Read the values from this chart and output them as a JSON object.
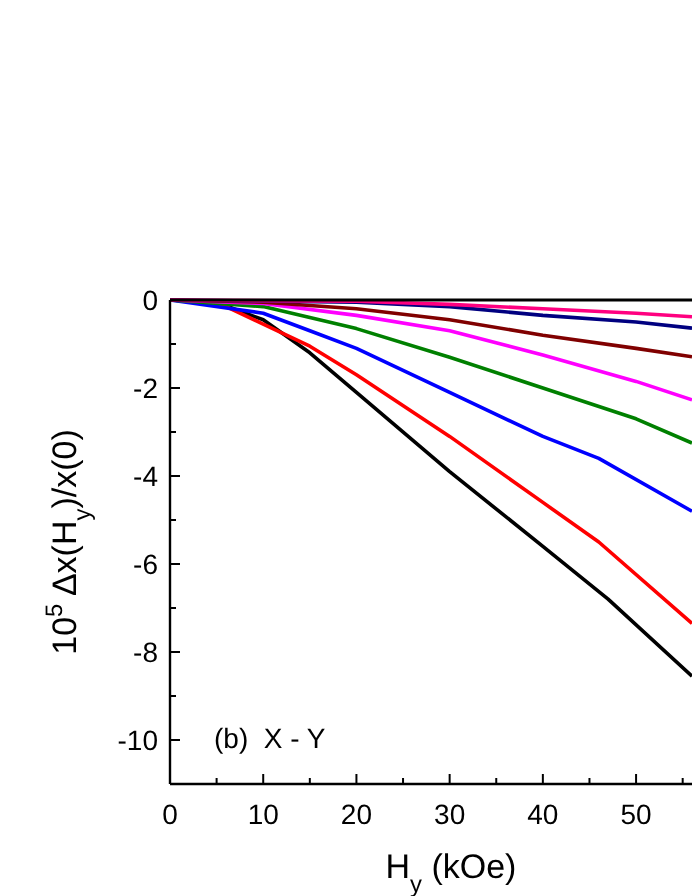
{
  "chart_data": {
    "type": "line",
    "xlabel": "H$_{y}$ (kOe)",
    "ylabel": "10$^{5}$ Δx(H$_{y}$)/x(0)",
    "xlim": [
      0,
      56
    ],
    "ylim": [
      -11,
      0
    ],
    "xticks": [
      0,
      {
        "value": 5,
        "label": null
      },
      10,
      {
        "value": 15,
        "label": null
      },
      20,
      {
        "value": 25,
        "label": null
      },
      30,
      {
        "value": 35,
        "label": null
      },
      40,
      {
        "value": 45,
        "label": null
      },
      50,
      {
        "value": 55,
        "label": null
      }
    ],
    "yticks": [
      0,
      {
        "value": -1,
        "label": null
      },
      -2,
      {
        "value": -3,
        "label": null
      },
      -4,
      {
        "value": -5,
        "label": null
      },
      -6,
      {
        "value": -7,
        "label": null
      },
      -8,
      {
        "value": -9,
        "label": null
      },
      -10
    ],
    "grid": false,
    "marker": "none",
    "line_style": "solid",
    "annotations": [
      "(b)  X - Y"
    ],
    "series": [
      {
        "color": "#000000",
        "x": [
          0,
          5,
          10,
          15,
          20,
          30,
          40,
          47,
          56
        ],
        "values": [
          0,
          -0.05,
          -0.45,
          -1.2,
          -2.1,
          -3.9,
          -5.6,
          -6.8,
          -8.55
        ]
      },
      {
        "color": "#ff0000",
        "x": [
          0,
          5,
          10,
          15,
          20,
          30,
          40,
          46,
          56
        ],
        "values": [
          0,
          -0.05,
          -0.55,
          -1.05,
          -1.7,
          -3.1,
          -4.6,
          -5.5,
          -7.35
        ]
      },
      {
        "color": "#0000ff",
        "x": [
          0,
          5,
          10,
          15,
          20,
          30,
          40,
          46,
          56
        ],
        "values": [
          0,
          null,
          -0.3,
          -0.7,
          -1.1,
          -2.1,
          -3.1,
          -3.6,
          -4.8
        ]
      },
      {
        "color": "#008000",
        "x": [
          0,
          10,
          15,
          20,
          30,
          40,
          50,
          56
        ],
        "values": [
          0,
          -0.15,
          -0.4,
          -0.65,
          -1.3,
          -2.0,
          -2.7,
          -3.25
        ]
      },
      {
        "color": "#ff00ff",
        "x": [
          0,
          10,
          20,
          30,
          40,
          50,
          56
        ],
        "values": [
          0,
          -0.08,
          -0.35,
          -0.7,
          -1.25,
          -1.85,
          -2.27
        ]
      },
      {
        "color": "#800000",
        "x": [
          0,
          10,
          20,
          30,
          40,
          50,
          56
        ],
        "values": [
          0,
          -0.05,
          -0.2,
          -0.45,
          -0.8,
          -1.1,
          -1.29
        ]
      },
      {
        "color": "#000080",
        "x": [
          0,
          20,
          30,
          40,
          50,
          56
        ],
        "values": [
          0,
          -0.05,
          -0.15,
          -0.35,
          -0.5,
          -0.64
        ]
      },
      {
        "color": "#ff0080",
        "x": [
          0,
          20,
          30,
          40,
          50,
          56
        ],
        "values": [
          0,
          -0.03,
          -0.1,
          -0.2,
          -0.3,
          -0.38
        ]
      }
    ]
  }
}
